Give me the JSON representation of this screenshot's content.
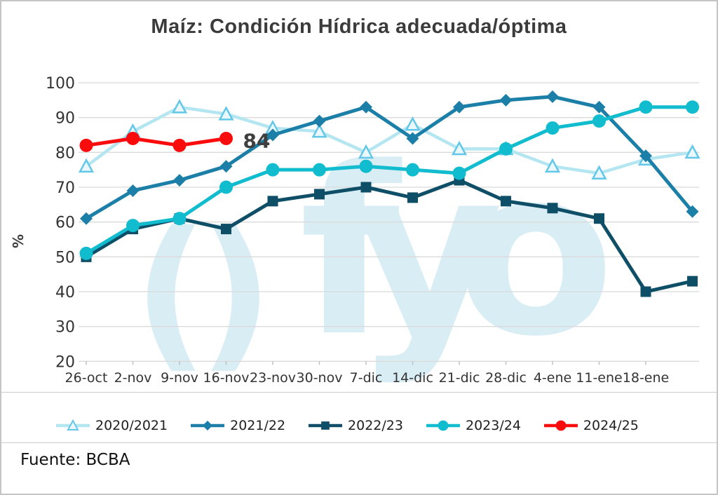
{
  "source": "Fuente: BCBA",
  "watermark": {
    "symbol": "( )",
    "text": "fyo",
    "color": "#d9edf5"
  },
  "colors": {
    "gridline": "#dadada",
    "tick_text": "#333333",
    "annotation_text": "#3f3f3f",
    "title_text": "#3b3b3b"
  },
  "chart_data": {
    "type": "line",
    "title": "Maíz: Condición Hídrica adecuada/óptima",
    "xlabel": "",
    "ylabel": "%",
    "ylim": [
      20,
      100
    ],
    "yticks": [
      100,
      90,
      80,
      70,
      60,
      50,
      40,
      30,
      20
    ],
    "grid": "horizontal",
    "legend_position": "bottom",
    "categories": [
      "26-oct",
      "2-nov",
      "9-nov",
      "16-nov",
      "23-nov",
      "30-nov",
      "7-dic",
      "14-dic",
      "21-dic",
      "28-dic",
      "4-ene",
      "11-ene",
      "18-ene",
      ""
    ],
    "series": [
      {
        "name": "2020/2021",
        "color": "#b4e6f2",
        "marker": "triangle-open",
        "marker_stroke": "#62c7e8",
        "marker_fill": "#eaf8fd",
        "values": [
          76,
          86,
          93,
          91,
          87,
          86,
          80,
          88,
          81,
          81,
          76,
          74,
          78,
          80
        ]
      },
      {
        "name": "2021/22",
        "color": "#1b7fa7",
        "marker": "diamond",
        "values": [
          61,
          69,
          72,
          76,
          85,
          89,
          93,
          84,
          93,
          95,
          96,
          93,
          79,
          63
        ]
      },
      {
        "name": "2022/23",
        "color": "#0e4e66",
        "marker": "square",
        "values": [
          50,
          58,
          61,
          58,
          66,
          68,
          70,
          67,
          72,
          66,
          64,
          61,
          40,
          43
        ]
      },
      {
        "name": "2023/24",
        "color": "#10bcce",
        "marker": "circle",
        "values": [
          51,
          59,
          61,
          70,
          75,
          75,
          76,
          75,
          74,
          81,
          87,
          89,
          93,
          93
        ]
      },
      {
        "name": "2024/25",
        "color": "#fb0c0c",
        "marker": "circle",
        "values": [
          82,
          84,
          82,
          84
        ]
      }
    ],
    "annotation": {
      "text": "84",
      "series": "2024/25",
      "x_index": 3,
      "value": 84
    }
  }
}
